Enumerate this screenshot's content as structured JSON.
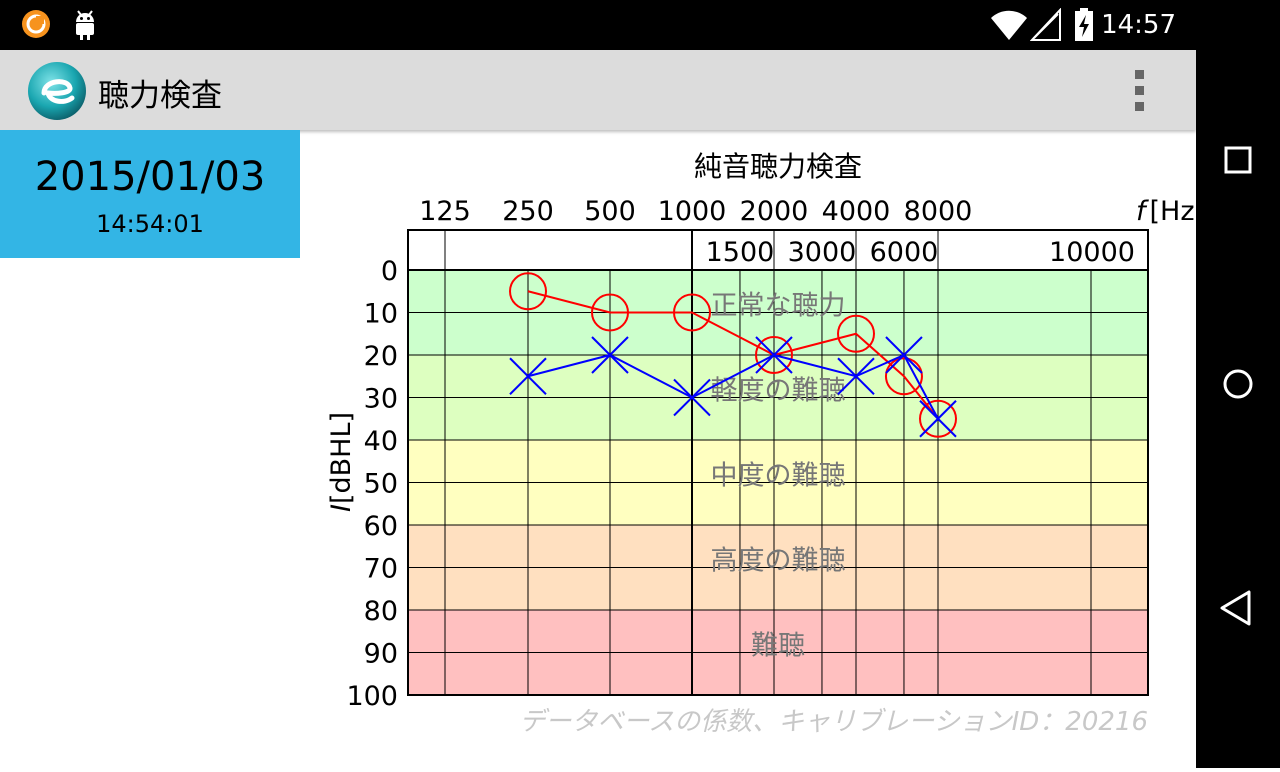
{
  "status_bar": {
    "time": "14:57",
    "icons": [
      "notification-app-icon",
      "android-icon",
      "wifi-icon",
      "cellular-signal-icon",
      "battery-charging-icon"
    ]
  },
  "action_bar": {
    "title": "聴力検査",
    "app_icon": "e-logo-icon",
    "menu_icon": "overflow-menu-icon"
  },
  "record": {
    "date": "2015/01/03",
    "time": "14:54:01"
  },
  "nav_bar": {
    "icons": [
      "recent-apps-icon",
      "home-icon",
      "back-icon"
    ]
  },
  "colors": {
    "accent": "#33b5e5",
    "right_ear": "#ff0000",
    "left_ear": "#0000ff",
    "zone_normal": "#ccffcc",
    "zone_mild": "#ddffc0",
    "zone_moderate": "#ffffc0",
    "zone_severe": "#ffe0c0",
    "zone_profound": "#ffc0c0"
  },
  "chart_data": {
    "type": "line",
    "title": "純音聴力検査",
    "xlabel": "f [Hz]",
    "x_unit_symbol": "f",
    "x_unit": "[Hz]",
    "ylabel": "I [dBHL]",
    "y_unit_symbol": "I",
    "y_unit": "[dBHL]",
    "x_top_ticks": [
      "125",
      "250",
      "500",
      "1000",
      "2000",
      "4000",
      "8000"
    ],
    "x_bottom_ticks": [
      "1500",
      "3000",
      "6000",
      "10000"
    ],
    "y_ticks": [
      "0",
      "10",
      "20",
      "30",
      "40",
      "50",
      "60",
      "70",
      "80",
      "90",
      "100"
    ],
    "ylim": [
      0,
      100
    ],
    "y_inverted": true,
    "zones": [
      {
        "label": "正常な聴力",
        "from": 0,
        "to": 20
      },
      {
        "label": "軽度の難聴",
        "from": 20,
        "to": 40
      },
      {
        "label": "中度の難聴",
        "from": 40,
        "to": 60
      },
      {
        "label": "高度の難聴",
        "from": 60,
        "to": 80
      },
      {
        "label": "難聴",
        "from": 80,
        "to": 100
      }
    ],
    "series": [
      {
        "marker": "circle",
        "color": "#ff0000",
        "x": [
          250,
          500,
          1000,
          2000,
          4000,
          6000,
          8000
        ],
        "values": [
          5,
          10,
          10,
          20,
          15,
          25,
          35
        ]
      },
      {
        "marker": "cross",
        "color": "#0000ff",
        "x": [
          250,
          500,
          1000,
          2000,
          4000,
          6000,
          8000
        ],
        "values": [
          25,
          20,
          30,
          20,
          25,
          20,
          35
        ]
      }
    ],
    "footnote": "データベースの係数、キャリブレーションID：20216"
  }
}
